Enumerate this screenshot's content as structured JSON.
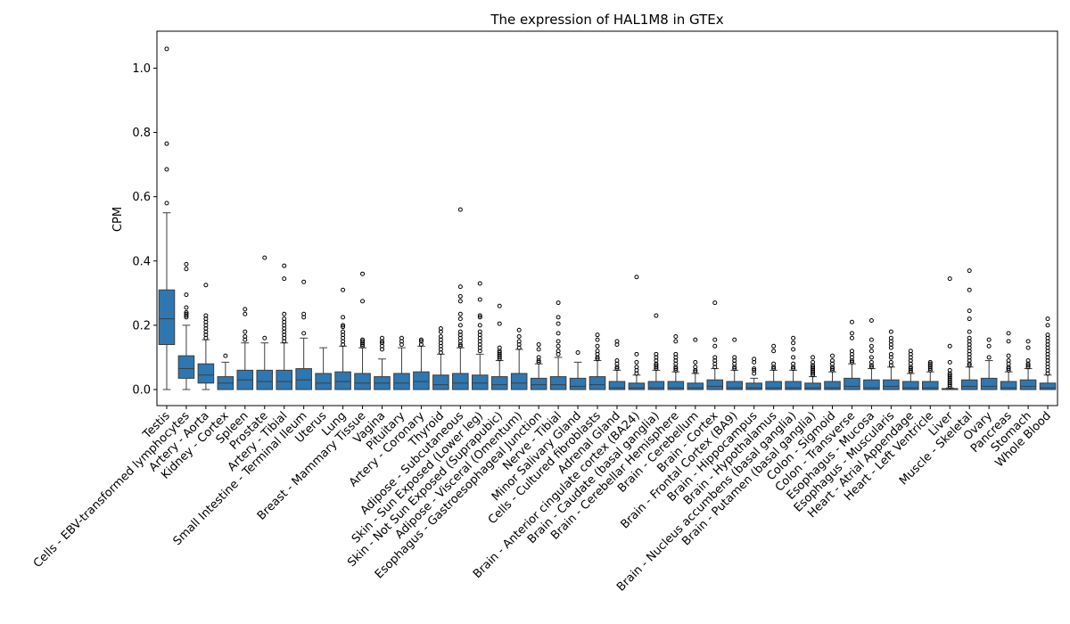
{
  "chart_data": {
    "type": "box",
    "title": "The expression of HAL1M8 in GTEx",
    "xlabel": "",
    "ylabel": "CPM",
    "ylim": [
      -0.05,
      1.115
    ],
    "yticks": [
      0.0,
      0.2,
      0.4,
      0.6,
      0.8,
      1.0
    ],
    "ytick_labels": [
      "0.0",
      "0.2",
      "0.4",
      "0.6",
      "0.8",
      "1.0"
    ],
    "color": "#2e77b0",
    "grid": false,
    "categories": [
      "Testis",
      "Cells - EBV-transformed lymphocytes",
      "Artery - Aorta",
      "Kidney - Cortex",
      "Spleen",
      "Prostate",
      "Artery - Tibial",
      "Small Intestine - Terminal Ileum",
      "Uterus",
      "Lung",
      "Breast - Mammary Tissue",
      "Vagina",
      "Pituitary",
      "Artery - Coronary",
      "Thyroid",
      "Adipose - Subcutaneous",
      "Skin - Sun Exposed (Lower leg)",
      "Skin - Not Sun Exposed (Suprapubic)",
      "Adipose - Visceral (Omentum)",
      "Esophagus - Gastroesophageal Junction",
      "Nerve - Tibial",
      "Minor Salivary Gland",
      "Cells - Cultured fibroblasts",
      "Adrenal Gland",
      "Brain - Anterior cingulate cortex (BA24)",
      "Brain - Caudate (basal ganglia)",
      "Brain - Cerebellar Hemisphere",
      "Brain - Cerebellum",
      "Brain - Cortex",
      "Brain - Frontal Cortex (BA9)",
      "Brain - Hippocampus",
      "Brain - Hypothalamus",
      "Brain - Nucleus accumbens (basal ganglia)",
      "Brain - Putamen (basal ganglia)",
      "Colon - Sigmoid",
      "Colon - Transverse",
      "Esophagus - Mucosa",
      "Esophagus - Muscularis",
      "Heart - Atrial Appendage",
      "Heart - Left Ventricle",
      "Liver",
      "Muscle - Skeletal",
      "Ovary",
      "Pancreas",
      "Stomach",
      "Whole Blood"
    ],
    "boxes": [
      {
        "q1": 0.14,
        "median": 0.22,
        "q3": 0.31,
        "whislo": 0.0,
        "whishi": 0.55,
        "fliers": [
          0.58,
          0.685,
          0.765,
          1.06
        ]
      },
      {
        "q1": 0.035,
        "median": 0.065,
        "q3": 0.105,
        "whislo": 0.0,
        "whishi": 0.2,
        "fliers": [
          0.225,
          0.23,
          0.235,
          0.24,
          0.255,
          0.295,
          0.375,
          0.39
        ]
      },
      {
        "q1": 0.02,
        "median": 0.045,
        "q3": 0.08,
        "whislo": 0.0,
        "whishi": 0.155,
        "fliers": [
          0.16,
          0.17,
          0.18,
          0.19,
          0.2,
          0.21,
          0.22,
          0.23,
          0.325
        ]
      },
      {
        "q1": 0.0,
        "median": 0.02,
        "q3": 0.04,
        "whislo": 0.0,
        "whishi": 0.085,
        "fliers": [
          0.105
        ]
      },
      {
        "q1": 0.0,
        "median": 0.03,
        "q3": 0.06,
        "whislo": 0.0,
        "whishi": 0.145,
        "fliers": [
          0.155,
          0.165,
          0.18,
          0.235,
          0.25
        ]
      },
      {
        "q1": 0.0,
        "median": 0.025,
        "q3": 0.06,
        "whislo": 0.0,
        "whishi": 0.145,
        "fliers": [
          0.16,
          0.41
        ]
      },
      {
        "q1": 0.0,
        "median": 0.025,
        "q3": 0.06,
        "whislo": 0.0,
        "whishi": 0.145,
        "fliers": [
          0.15,
          0.16,
          0.17,
          0.18,
          0.19,
          0.2,
          0.21,
          0.22,
          0.235,
          0.345,
          0.385
        ]
      },
      {
        "q1": 0.0,
        "median": 0.03,
        "q3": 0.065,
        "whislo": 0.0,
        "whishi": 0.16,
        "fliers": [
          0.175,
          0.225,
          0.235,
          0.335
        ]
      },
      {
        "q1": 0.0,
        "median": 0.02,
        "q3": 0.05,
        "whislo": 0.0,
        "whishi": 0.13,
        "fliers": []
      },
      {
        "q1": 0.0,
        "median": 0.025,
        "q3": 0.055,
        "whislo": 0.0,
        "whishi": 0.135,
        "fliers": [
          0.14,
          0.15,
          0.16,
          0.17,
          0.18,
          0.195,
          0.2,
          0.225,
          0.31
        ]
      },
      {
        "q1": 0.0,
        "median": 0.02,
        "q3": 0.05,
        "whislo": 0.0,
        "whishi": 0.13,
        "fliers": [
          0.135,
          0.14,
          0.145,
          0.15,
          0.155,
          0.275,
          0.36
        ]
      },
      {
        "q1": 0.0,
        "median": 0.02,
        "q3": 0.04,
        "whislo": 0.0,
        "whishi": 0.095,
        "fliers": [
          0.125,
          0.135,
          0.145,
          0.15,
          0.16
        ]
      },
      {
        "q1": 0.0,
        "median": 0.02,
        "q3": 0.05,
        "whislo": 0.0,
        "whishi": 0.13,
        "fliers": [
          0.14,
          0.15,
          0.16
        ]
      },
      {
        "q1": 0.0,
        "median": 0.025,
        "q3": 0.055,
        "whislo": 0.0,
        "whishi": 0.135,
        "fliers": [
          0.14,
          0.15,
          0.155
        ]
      },
      {
        "q1": 0.0,
        "median": 0.015,
        "q3": 0.045,
        "whislo": 0.0,
        "whishi": 0.11,
        "fliers": [
          0.115,
          0.125,
          0.135,
          0.145,
          0.155,
          0.165,
          0.18,
          0.19
        ]
      },
      {
        "q1": 0.0,
        "median": 0.02,
        "q3": 0.05,
        "whislo": 0.0,
        "whishi": 0.13,
        "fliers": [
          0.135,
          0.14,
          0.15,
          0.16,
          0.17,
          0.18,
          0.2,
          0.22,
          0.235,
          0.275,
          0.29,
          0.32,
          0.56
        ]
      },
      {
        "q1": 0.0,
        "median": 0.02,
        "q3": 0.045,
        "whislo": 0.0,
        "whishi": 0.11,
        "fliers": [
          0.12,
          0.13,
          0.14,
          0.15,
          0.16,
          0.17,
          0.18,
          0.2,
          0.225,
          0.23,
          0.28,
          0.33
        ]
      },
      {
        "q1": 0.0,
        "median": 0.015,
        "q3": 0.04,
        "whislo": 0.0,
        "whishi": 0.09,
        "fliers": [
          0.095,
          0.1,
          0.105,
          0.11,
          0.115,
          0.12,
          0.13,
          0.205,
          0.26
        ]
      },
      {
        "q1": 0.0,
        "median": 0.02,
        "q3": 0.05,
        "whislo": 0.0,
        "whishi": 0.125,
        "fliers": [
          0.13,
          0.14,
          0.15,
          0.165,
          0.185
        ]
      },
      {
        "q1": 0.0,
        "median": 0.015,
        "q3": 0.035,
        "whislo": 0.0,
        "whishi": 0.08,
        "fliers": [
          0.085,
          0.09,
          0.1,
          0.125,
          0.14
        ]
      },
      {
        "q1": 0.0,
        "median": 0.015,
        "q3": 0.04,
        "whislo": 0.0,
        "whishi": 0.1,
        "fliers": [
          0.11,
          0.12,
          0.135,
          0.15,
          0.175,
          0.205,
          0.225,
          0.27
        ]
      },
      {
        "q1": 0.0,
        "median": 0.01,
        "q3": 0.035,
        "whislo": 0.0,
        "whishi": 0.085,
        "fliers": [
          0.115
        ]
      },
      {
        "q1": 0.0,
        "median": 0.015,
        "q3": 0.04,
        "whislo": 0.0,
        "whishi": 0.09,
        "fliers": [
          0.095,
          0.1,
          0.11,
          0.12,
          0.135,
          0.155,
          0.17
        ]
      },
      {
        "q1": 0.0,
        "median": 0.005,
        "q3": 0.025,
        "whislo": 0.0,
        "whishi": 0.06,
        "fliers": [
          0.065,
          0.07,
          0.08,
          0.09,
          0.14,
          0.15
        ]
      },
      {
        "q1": 0.0,
        "median": 0.005,
        "q3": 0.02,
        "whislo": 0.0,
        "whishi": 0.045,
        "fliers": [
          0.05,
          0.06,
          0.07,
          0.085,
          0.11,
          0.35
        ]
      },
      {
        "q1": 0.0,
        "median": 0.005,
        "q3": 0.025,
        "whislo": 0.0,
        "whishi": 0.06,
        "fliers": [
          0.065,
          0.07,
          0.075,
          0.08,
          0.09,
          0.1,
          0.11,
          0.23
        ]
      },
      {
        "q1": 0.0,
        "median": 0.005,
        "q3": 0.025,
        "whislo": 0.0,
        "whishi": 0.055,
        "fliers": [
          0.06,
          0.065,
          0.07,
          0.08,
          0.09,
          0.1,
          0.11,
          0.15,
          0.165
        ]
      },
      {
        "q1": 0.0,
        "median": 0.005,
        "q3": 0.02,
        "whislo": 0.0,
        "whishi": 0.05,
        "fliers": [
          0.055,
          0.06,
          0.07,
          0.085,
          0.155
        ]
      },
      {
        "q1": 0.0,
        "median": 0.01,
        "q3": 0.03,
        "whislo": 0.0,
        "whishi": 0.065,
        "fliers": [
          0.07,
          0.08,
          0.09,
          0.1,
          0.135,
          0.155,
          0.27
        ]
      },
      {
        "q1": 0.0,
        "median": 0.005,
        "q3": 0.025,
        "whislo": 0.0,
        "whishi": 0.06,
        "fliers": [
          0.065,
          0.07,
          0.08,
          0.09,
          0.1,
          0.155
        ]
      },
      {
        "q1": 0.0,
        "median": 0.005,
        "q3": 0.02,
        "whislo": 0.0,
        "whishi": 0.035,
        "fliers": [
          0.05,
          0.06,
          0.065,
          0.085,
          0.095
        ]
      },
      {
        "q1": 0.0,
        "median": 0.005,
        "q3": 0.025,
        "whislo": 0.0,
        "whishi": 0.06,
        "fliers": [
          0.065,
          0.07,
          0.08,
          0.12,
          0.135
        ]
      },
      {
        "q1": 0.0,
        "median": 0.005,
        "q3": 0.025,
        "whislo": 0.0,
        "whishi": 0.06,
        "fliers": [
          0.065,
          0.07,
          0.08,
          0.1,
          0.125,
          0.145,
          0.16
        ]
      },
      {
        "q1": 0.0,
        "median": 0.005,
        "q3": 0.02,
        "whislo": 0.0,
        "whishi": 0.04,
        "fliers": [
          0.045,
          0.05,
          0.055,
          0.06,
          0.065,
          0.07,
          0.075,
          0.085,
          0.1
        ]
      },
      {
        "q1": 0.0,
        "median": 0.005,
        "q3": 0.025,
        "whislo": 0.0,
        "whishi": 0.055,
        "fliers": [
          0.06,
          0.065,
          0.07,
          0.08,
          0.09,
          0.105
        ]
      },
      {
        "q1": 0.0,
        "median": 0.01,
        "q3": 0.035,
        "whislo": 0.0,
        "whishi": 0.08,
        "fliers": [
          0.085,
          0.09,
          0.1,
          0.11,
          0.12,
          0.16,
          0.175,
          0.21
        ]
      },
      {
        "q1": 0.0,
        "median": 0.005,
        "q3": 0.03,
        "whislo": 0.0,
        "whishi": 0.065,
        "fliers": [
          0.07,
          0.075,
          0.085,
          0.1,
          0.12,
          0.135,
          0.155,
          0.215
        ]
      },
      {
        "q1": 0.0,
        "median": 0.01,
        "q3": 0.03,
        "whislo": 0.0,
        "whishi": 0.07,
        "fliers": [
          0.075,
          0.085,
          0.1,
          0.11,
          0.13,
          0.14,
          0.15,
          0.16,
          0.18
        ]
      },
      {
        "q1": 0.0,
        "median": 0.005,
        "q3": 0.025,
        "whislo": 0.0,
        "whishi": 0.05,
        "fliers": [
          0.055,
          0.06,
          0.065,
          0.07,
          0.08,
          0.09,
          0.1,
          0.11,
          0.12
        ]
      },
      {
        "q1": 0.0,
        "median": 0.005,
        "q3": 0.025,
        "whislo": 0.0,
        "whishi": 0.055,
        "fliers": [
          0.06,
          0.065,
          0.07,
          0.075,
          0.08,
          0.085
        ]
      },
      {
        "q1": 0.0,
        "median": 0.001,
        "q3": 0.003,
        "whislo": 0.0,
        "whishi": 0.005,
        "fliers": [
          0.01,
          0.015,
          0.02,
          0.025,
          0.03,
          0.035,
          0.04,
          0.045,
          0.05,
          0.06,
          0.085,
          0.135,
          0.345
        ]
      },
      {
        "q1": 0.0,
        "median": 0.01,
        "q3": 0.03,
        "whislo": 0.0,
        "whishi": 0.07,
        "fliers": [
          0.075,
          0.08,
          0.09,
          0.1,
          0.11,
          0.12,
          0.13,
          0.14,
          0.15,
          0.16,
          0.18,
          0.22,
          0.245,
          0.31,
          0.37
        ]
      },
      {
        "q1": 0.0,
        "median": 0.01,
        "q3": 0.035,
        "whislo": 0.0,
        "whishi": 0.09,
        "fliers": [
          0.1,
          0.135,
          0.155
        ]
      },
      {
        "q1": 0.0,
        "median": 0.005,
        "q3": 0.025,
        "whislo": 0.0,
        "whishi": 0.055,
        "fliers": [
          0.06,
          0.065,
          0.07,
          0.08,
          0.09,
          0.105,
          0.15,
          0.175
        ]
      },
      {
        "q1": 0.0,
        "median": 0.01,
        "q3": 0.03,
        "whislo": 0.0,
        "whishi": 0.065,
        "fliers": [
          0.07,
          0.075,
          0.08,
          0.09,
          0.13,
          0.15
        ]
      },
      {
        "q1": 0.0,
        "median": 0.005,
        "q3": 0.02,
        "whislo": 0.0,
        "whishi": 0.045,
        "fliers": [
          0.05,
          0.06,
          0.07,
          0.08,
          0.09,
          0.1,
          0.11,
          0.12,
          0.13,
          0.14,
          0.15,
          0.16,
          0.17,
          0.2,
          0.22
        ]
      }
    ]
  }
}
